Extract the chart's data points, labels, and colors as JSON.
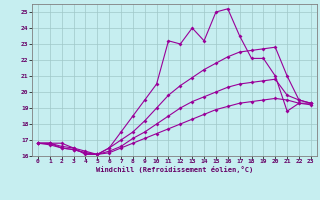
{
  "xlabel": "Windchill (Refroidissement éolien,°C)",
  "xlim": [
    -0.5,
    23.5
  ],
  "ylim": [
    16,
    25.5
  ],
  "xticks": [
    0,
    1,
    2,
    3,
    4,
    5,
    6,
    7,
    8,
    9,
    10,
    11,
    12,
    13,
    14,
    15,
    16,
    17,
    18,
    19,
    20,
    21,
    22,
    23
  ],
  "yticks": [
    16,
    17,
    18,
    19,
    20,
    21,
    22,
    23,
    24,
    25
  ],
  "bg_color": "#c6eef0",
  "line_color": "#990099",
  "grid_color": "#a0c8c8",
  "line1_x": [
    0,
    1,
    2,
    3,
    4,
    5,
    6,
    7,
    8,
    9,
    10,
    11,
    12,
    13,
    14,
    15,
    16,
    17,
    18,
    19,
    20,
    21,
    22,
    23
  ],
  "line1_y": [
    16.8,
    16.8,
    16.8,
    16.5,
    16.1,
    16.1,
    16.5,
    17.5,
    18.5,
    19.5,
    20.5,
    23.2,
    23.0,
    24.0,
    23.2,
    25.0,
    25.2,
    23.5,
    22.1,
    22.1,
    21.0,
    18.8,
    19.3,
    19.3
  ],
  "line2_x": [
    0,
    1,
    2,
    3,
    4,
    5,
    6,
    7,
    8,
    9,
    10,
    11,
    12,
    13,
    14,
    15,
    16,
    17,
    18,
    19,
    20,
    21,
    22,
    23
  ],
  "line2_y": [
    16.8,
    16.8,
    16.6,
    16.5,
    16.3,
    16.1,
    16.5,
    17.0,
    17.5,
    18.2,
    19.0,
    19.8,
    20.4,
    20.9,
    21.4,
    21.8,
    22.2,
    22.5,
    22.6,
    22.7,
    22.8,
    21.0,
    19.5,
    19.3
  ],
  "line3_x": [
    0,
    1,
    2,
    3,
    4,
    5,
    6,
    7,
    8,
    9,
    10,
    11,
    12,
    13,
    14,
    15,
    16,
    17,
    18,
    19,
    20,
    21,
    22,
    23
  ],
  "line3_y": [
    16.8,
    16.8,
    16.5,
    16.4,
    16.2,
    16.1,
    16.3,
    16.6,
    17.1,
    17.5,
    18.0,
    18.5,
    19.0,
    19.4,
    19.7,
    20.0,
    20.3,
    20.5,
    20.6,
    20.7,
    20.8,
    19.8,
    19.5,
    19.3
  ],
  "line4_x": [
    0,
    1,
    2,
    3,
    4,
    5,
    6,
    7,
    8,
    9,
    10,
    11,
    12,
    13,
    14,
    15,
    16,
    17,
    18,
    19,
    20,
    21,
    22,
    23
  ],
  "line4_y": [
    16.8,
    16.7,
    16.5,
    16.4,
    16.2,
    16.1,
    16.2,
    16.5,
    16.8,
    17.1,
    17.4,
    17.7,
    18.0,
    18.3,
    18.6,
    18.9,
    19.1,
    19.3,
    19.4,
    19.5,
    19.6,
    19.5,
    19.3,
    19.2
  ]
}
